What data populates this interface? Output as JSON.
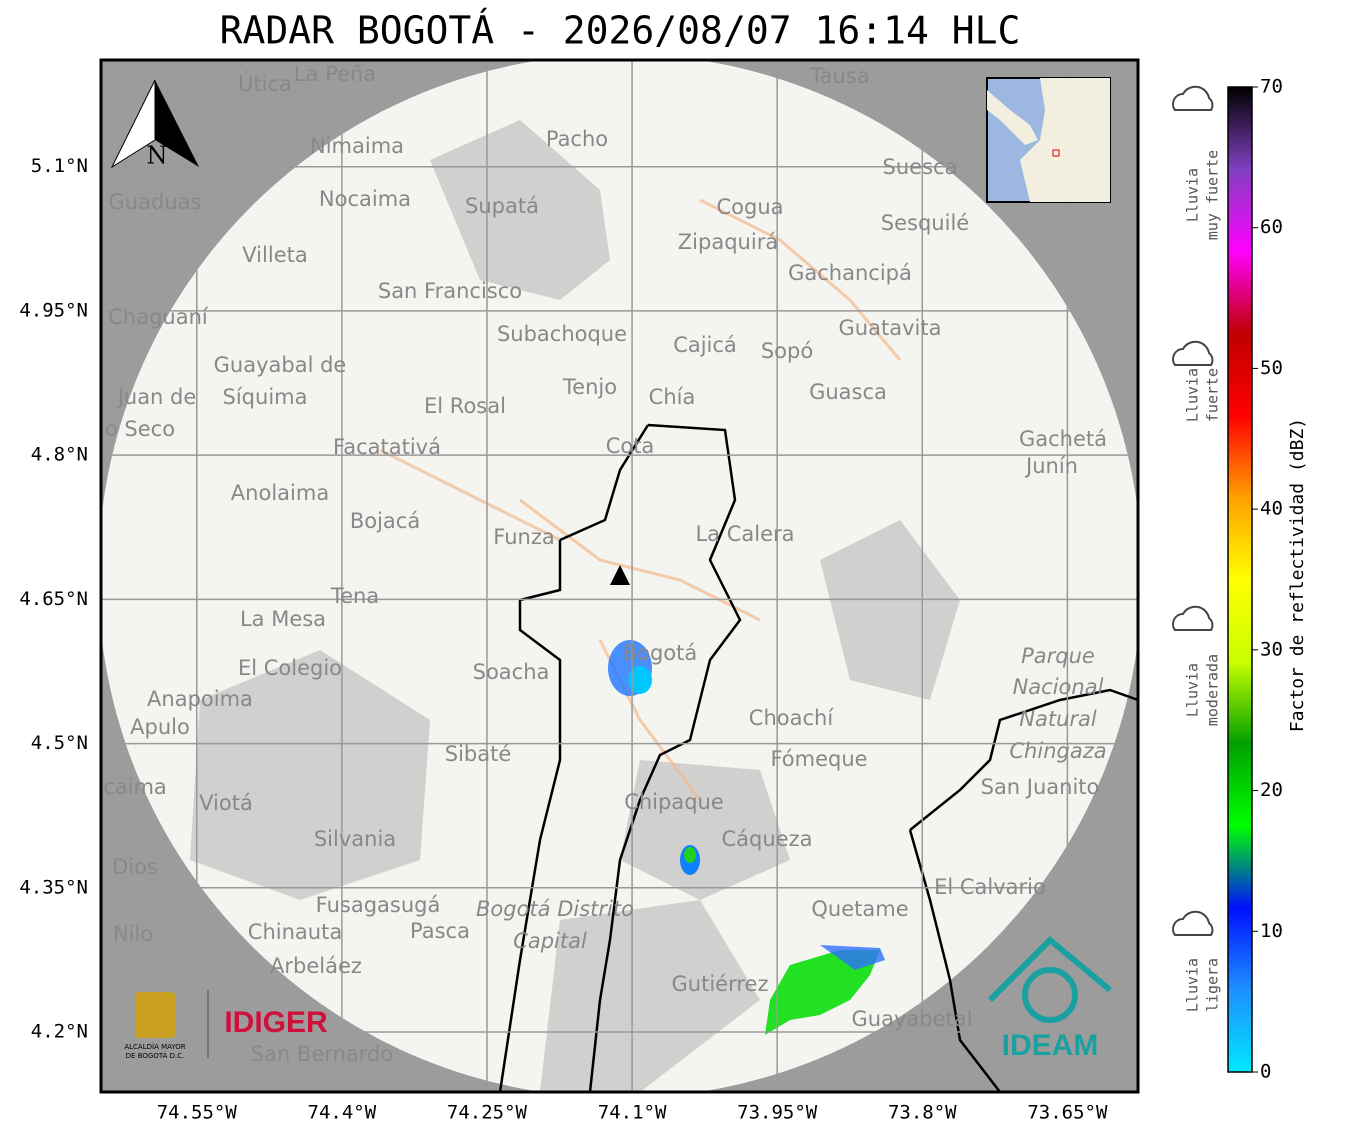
{
  "title": "RADAR BOGOTÁ - 2026/08/07 16:14 HLC",
  "map": {
    "xlim": [
      -74.649,
      -73.577
    ],
    "ylim": [
      4.1376,
      5.211
    ],
    "grid": true,
    "xticks": [
      {
        "value": -74.55,
        "label": "74.55°W"
      },
      {
        "value": -74.4,
        "label": "74.4°W"
      },
      {
        "value": -74.25,
        "label": "74.25°W"
      },
      {
        "value": -74.1,
        "label": "74.1°W"
      },
      {
        "value": -73.95,
        "label": "73.95°W"
      },
      {
        "value": -73.8,
        "label": "73.8°W"
      },
      {
        "value": -73.65,
        "label": "73.65°W"
      }
    ],
    "yticks": [
      {
        "value": 4.2,
        "label": "4.2°N"
      },
      {
        "value": 4.35,
        "label": "4.35°N"
      },
      {
        "value": 4.5,
        "label": "4.5°N"
      },
      {
        "value": 4.65,
        "label": "4.65°N"
      },
      {
        "value": 4.8,
        "label": "4.8°N"
      },
      {
        "value": 4.95,
        "label": "4.95°N"
      },
      {
        "value": 5.1,
        "label": "5.1°N"
      }
    ],
    "north": "N",
    "places": [
      "La Peña",
      "Útica",
      "Tausa",
      "Pacho",
      "Nimaima",
      "Guaduas",
      "Nocaima",
      "Supatá",
      "Suesca",
      "Cogua",
      "Sesquilé",
      "Zipaquirá",
      "Villeta",
      "San Francisco",
      "Gachancipá",
      "Chaguaní",
      "Guatavita",
      "Subachoque",
      "Cajicá",
      "Sopó",
      "Guayabal de",
      "Síquima",
      "Tenjo",
      "Guasca",
      "Chía",
      "El Rosal",
      "Juan de",
      "o Seco",
      "Cota",
      "Facatativá",
      "Gachetá",
      "Junín",
      "Anolaima",
      "Bojacá",
      "Funza",
      "La Calera",
      "Tena",
      "La Mesa",
      "Bogotá",
      "Soacha",
      "Parque",
      "Nacional",
      "Natural",
      "Chingaza",
      "El Colegio",
      "Anapoima",
      "Apulo",
      "Choachí",
      "Sibaté",
      "Fómeque",
      "San Juanito",
      "caima",
      "Viotá",
      "Chipaque",
      "Silvania",
      "Cáqueza",
      "Dios",
      "El Calvario",
      "Fusagasugá",
      "Bogotá Distrito",
      "Capital",
      "Quetame",
      "Nilo",
      "Chinauta",
      "Pasca",
      "Arbeláez",
      "Gutiérrez",
      "Guayabetal",
      "San Bernardo"
    ]
  },
  "colorbar": {
    "label": "Factor de reflectividad (dBZ)",
    "lim": [
      0,
      70
    ],
    "ticks": [
      0,
      10,
      20,
      30,
      40,
      50,
      60,
      70
    ],
    "colors": [
      "#00e8ff",
      "#1e90ff",
      "#0010ff",
      "#00ff00",
      "#00a000",
      "#c8ff00",
      "#ffff00",
      "#ffa000",
      "#ff0000",
      "#c00000",
      "#ff00ff",
      "#8040c0",
      "#000000"
    ]
  },
  "intensity": [
    [
      "Lluvia",
      "muy fuerte"
    ],
    [
      "Lluvia",
      "fuerte"
    ],
    [
      "Lluvia",
      "moderada"
    ],
    [
      "Lluvia",
      "ligera"
    ]
  ],
  "logos": {
    "alcaldia": [
      "ALCALDÍA MAYOR",
      "DE BOGOTÁ D.C."
    ],
    "idiger": "IDIGER",
    "ideam": "IDEAM"
  }
}
